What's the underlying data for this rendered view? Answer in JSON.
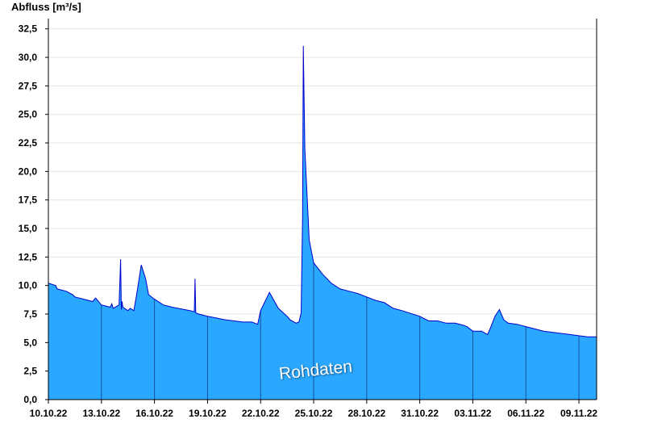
{
  "chart_data": {
    "type": "area",
    "title": "",
    "ylabel": "Abfluss [m³/s]",
    "xlabel": "",
    "watermark": "Rohdaten",
    "grid": true,
    "ylim": [
      0,
      33.4
    ],
    "yticks": [
      "0,0",
      "2,5",
      "5,0",
      "7,5",
      "10,0",
      "12,5",
      "15,0",
      "17,5",
      "20,0",
      "22,5",
      "25,0",
      "27,5",
      "30,0",
      "32,5"
    ],
    "xlim": [
      "2022-10-10",
      "2022-11-10"
    ],
    "xticks": [
      "10.10.22",
      "13.10.22",
      "16.10.22",
      "19.10.22",
      "22.10.22",
      "25.10.22",
      "28.10.22",
      "31.10.22",
      "03.11.22",
      "06.11.22",
      "09.11.22"
    ],
    "fill_color": "#2aa8ff",
    "line_color": "#0000cc",
    "series": [
      {
        "x": [
          "2022-10-10 00:00",
          "2022-10-10 10:00",
          "2022-10-10 12:00",
          "2022-10-11 00:00",
          "2022-10-11 09:00",
          "2022-10-11 12:00",
          "2022-10-12 00:00",
          "2022-10-12 12:00",
          "2022-10-12 16:00",
          "2022-10-13 00:00",
          "2022-10-13 12:00",
          "2022-10-13 14:00",
          "2022-10-13 16:00",
          "2022-10-14 00:00",
          "2022-10-14 02:00",
          "2022-10-14 03:00",
          "2022-10-14 04:00",
          "2022-10-14 05:00",
          "2022-10-14 12:00",
          "2022-10-14 15:00",
          "2022-10-14 20:00",
          "2022-10-15 00:00",
          "2022-10-15 06:00",
          "2022-10-15 12:00",
          "2022-10-15 16:00",
          "2022-10-16 00:00",
          "2022-10-16 12:00",
          "2022-10-17 00:00",
          "2022-10-18 00:00",
          "2022-10-18 06:00",
          "2022-10-18 07:00",
          "2022-10-18 08:00",
          "2022-10-18 12:00",
          "2022-10-19 00:00",
          "2022-10-20 00:00",
          "2022-10-20 12:00",
          "2022-10-21 00:00",
          "2022-10-21 12:00",
          "2022-10-21 20:00",
          "2022-10-22 00:00",
          "2022-10-22 12:00",
          "2022-10-23 00:00",
          "2022-10-23 12:00",
          "2022-10-23 16:00",
          "2022-10-24 00:00",
          "2022-10-24 04:00",
          "2022-10-24 07:00",
          "2022-10-24 09:00",
          "2022-10-24 10:00",
          "2022-10-24 12:00",
          "2022-10-24 18:00",
          "2022-10-25 00:00",
          "2022-10-25 12:00",
          "2022-10-26 00:00",
          "2022-10-26 12:00",
          "2022-10-27 00:00",
          "2022-10-27 12:00",
          "2022-10-28 00:00",
          "2022-10-28 12:00",
          "2022-10-29 00:00",
          "2022-10-29 12:00",
          "2022-10-30 00:00",
          "2022-10-31 00:00",
          "2022-10-31 12:00",
          "2022-11-01 00:00",
          "2022-11-01 12:00",
          "2022-11-02 00:00",
          "2022-11-02 12:00",
          "2022-11-02 16:00",
          "2022-11-03 00:00",
          "2022-11-03 12:00",
          "2022-11-03 20:00",
          "2022-11-04 00:00",
          "2022-11-04 06:00",
          "2022-11-04 12:00",
          "2022-11-04 18:00",
          "2022-11-05 00:00",
          "2022-11-05 12:00",
          "2022-11-06 00:00",
          "2022-11-06 12:00",
          "2022-11-07 00:00",
          "2022-11-07 12:00",
          "2022-11-08 00:00",
          "2022-11-08 12:00",
          "2022-11-09 00:00",
          "2022-11-09 12:00",
          "2022-11-10 00:00"
        ],
        "y": [
          10.2,
          10.0,
          9.7,
          9.5,
          9.2,
          9.0,
          8.8,
          8.6,
          8.9,
          8.3,
          8.1,
          8.4,
          8.0,
          8.3,
          12.3,
          7.9,
          8.6,
          8.1,
          7.8,
          8.0,
          7.8,
          9.3,
          11.8,
          10.6,
          9.2,
          8.8,
          8.3,
          8.1,
          7.8,
          7.7,
          10.6,
          7.6,
          7.5,
          7.3,
          7.0,
          6.9,
          6.8,
          6.8,
          6.6,
          7.8,
          9.4,
          8.0,
          7.3,
          7.0,
          6.7,
          6.8,
          7.6,
          16.0,
          31.0,
          22.0,
          14.0,
          12.0,
          11.0,
          10.2,
          9.7,
          9.5,
          9.3,
          9.0,
          8.7,
          8.5,
          8.0,
          7.8,
          7.3,
          6.9,
          6.9,
          6.7,
          6.7,
          6.5,
          6.4,
          6.0,
          6.0,
          5.7,
          6.3,
          7.3,
          7.9,
          7.0,
          6.7,
          6.6,
          6.4,
          6.2,
          6.0,
          5.9,
          5.8,
          5.7,
          5.6,
          5.5,
          5.5
        ]
      }
    ]
  }
}
